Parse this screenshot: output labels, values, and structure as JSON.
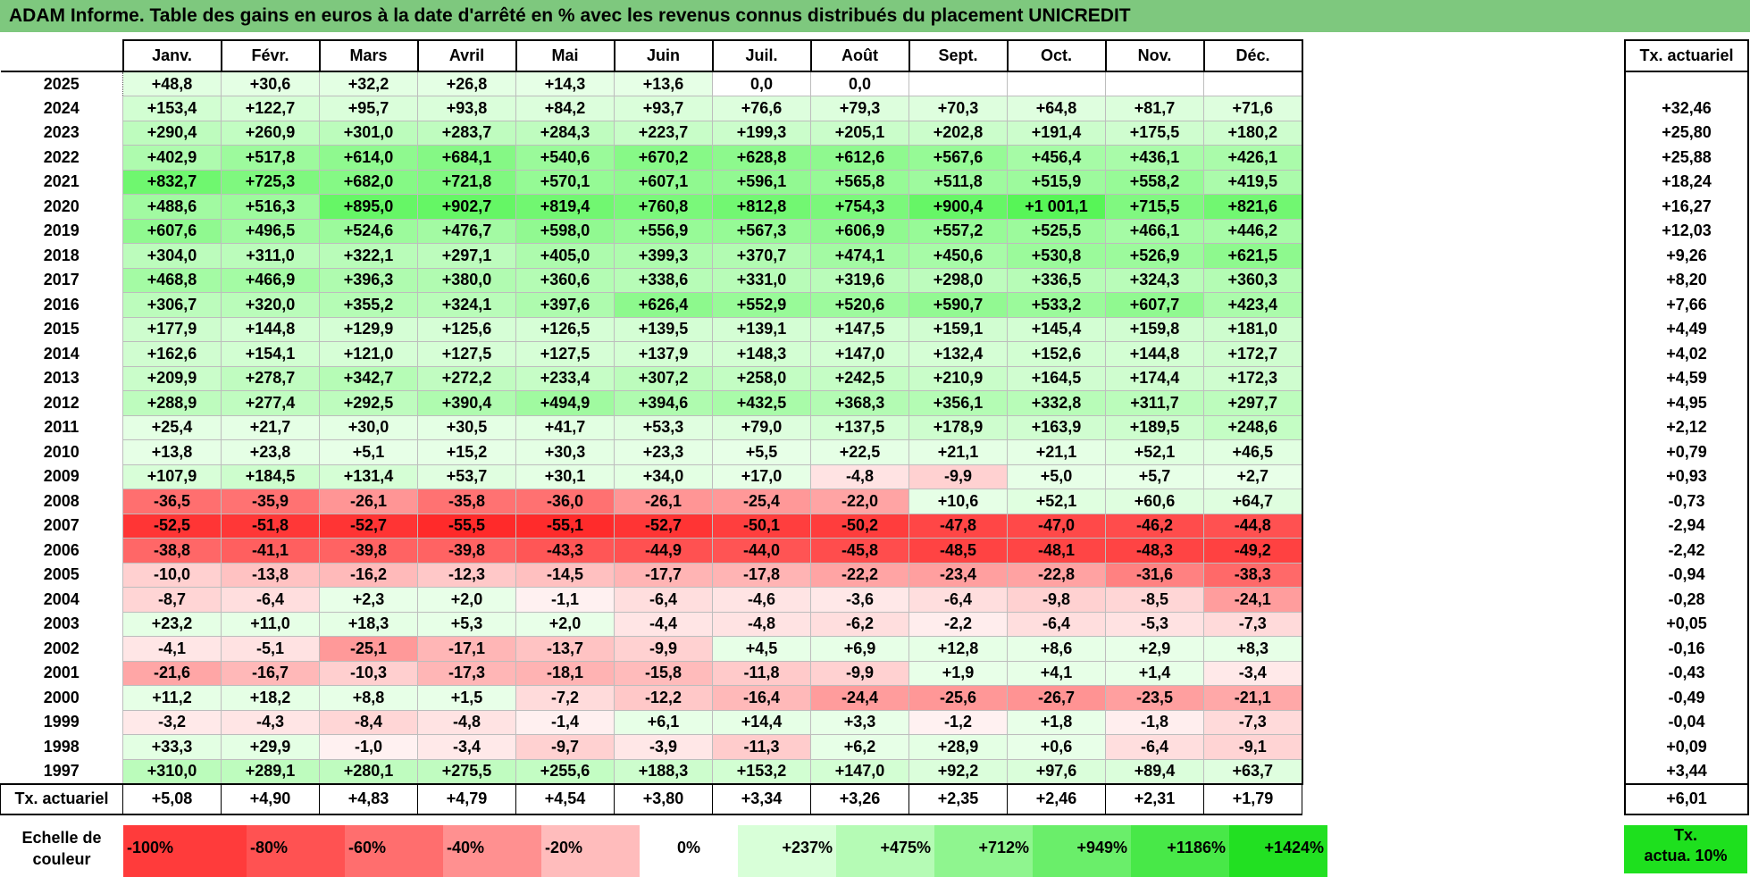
{
  "title": "ADAM Informe. Table des gains en euros à la date d'arrêté en % avec les revenus connus distribués du placement UNICREDIT",
  "months": [
    "Janv.",
    "Févr.",
    "Mars",
    "Avril",
    "Mai",
    "Juin",
    "Juil.",
    "Août",
    "Sept.",
    "Oct.",
    "Nov.",
    "Déc."
  ],
  "tx_header": "Tx. actuariel",
  "rows": [
    {
      "year": "2025",
      "values": [
        "+48,8",
        "+30,6",
        "+32,2",
        "+26,8",
        "+14,3",
        "+13,6",
        "0,0",
        "0,0",
        "",
        "",
        "",
        ""
      ],
      "tx": ""
    },
    {
      "year": "2024",
      "values": [
        "+153,4",
        "+122,7",
        "+95,7",
        "+93,8",
        "+84,2",
        "+93,7",
        "+76,6",
        "+79,3",
        "+70,3",
        "+64,8",
        "+81,7",
        "+71,6"
      ],
      "tx": "+32,46"
    },
    {
      "year": "2023",
      "values": [
        "+290,4",
        "+260,9",
        "+301,0",
        "+283,7",
        "+284,3",
        "+223,7",
        "+199,3",
        "+205,1",
        "+202,8",
        "+191,4",
        "+175,5",
        "+180,2"
      ],
      "tx": "+25,80"
    },
    {
      "year": "2022",
      "values": [
        "+402,9",
        "+517,8",
        "+614,0",
        "+684,1",
        "+540,6",
        "+670,2",
        "+628,8",
        "+612,6",
        "+567,6",
        "+456,4",
        "+436,1",
        "+426,1"
      ],
      "tx": "+25,88"
    },
    {
      "year": "2021",
      "values": [
        "+832,7",
        "+725,3",
        "+682,0",
        "+721,8",
        "+570,1",
        "+607,1",
        "+596,1",
        "+565,8",
        "+511,8",
        "+515,9",
        "+558,2",
        "+419,5"
      ],
      "tx": "+18,24"
    },
    {
      "year": "2020",
      "values": [
        "+488,6",
        "+516,3",
        "+895,0",
        "+902,7",
        "+819,4",
        "+760,8",
        "+812,8",
        "+754,3",
        "+900,4",
        "+1 001,1",
        "+715,5",
        "+821,6"
      ],
      "tx": "+16,27"
    },
    {
      "year": "2019",
      "values": [
        "+607,6",
        "+496,5",
        "+524,6",
        "+476,7",
        "+598,0",
        "+556,9",
        "+567,3",
        "+606,9",
        "+557,2",
        "+525,5",
        "+466,1",
        "+446,2"
      ],
      "tx": "+12,03"
    },
    {
      "year": "2018",
      "values": [
        "+304,0",
        "+311,0",
        "+322,1",
        "+297,1",
        "+405,0",
        "+399,3",
        "+370,7",
        "+474,1",
        "+450,6",
        "+530,8",
        "+526,9",
        "+621,5"
      ],
      "tx": "+9,26"
    },
    {
      "year": "2017",
      "values": [
        "+468,8",
        "+466,9",
        "+396,3",
        "+380,0",
        "+360,6",
        "+338,6",
        "+331,0",
        "+319,6",
        "+298,0",
        "+336,5",
        "+324,3",
        "+360,3"
      ],
      "tx": "+8,20"
    },
    {
      "year": "2016",
      "values": [
        "+306,7",
        "+320,0",
        "+355,2",
        "+324,1",
        "+397,6",
        "+626,4",
        "+552,9",
        "+520,6",
        "+590,7",
        "+533,2",
        "+607,7",
        "+423,4"
      ],
      "tx": "+7,66"
    },
    {
      "year": "2015",
      "values": [
        "+177,9",
        "+144,8",
        "+129,9",
        "+125,6",
        "+126,5",
        "+139,5",
        "+139,1",
        "+147,5",
        "+159,1",
        "+145,4",
        "+159,8",
        "+181,0"
      ],
      "tx": "+4,49"
    },
    {
      "year": "2014",
      "values": [
        "+162,6",
        "+154,1",
        "+121,0",
        "+127,5",
        "+127,5",
        "+137,9",
        "+148,3",
        "+147,0",
        "+132,4",
        "+152,6",
        "+144,8",
        "+172,7"
      ],
      "tx": "+4,02"
    },
    {
      "year": "2013",
      "values": [
        "+209,9",
        "+278,7",
        "+342,7",
        "+272,2",
        "+233,4",
        "+307,2",
        "+258,0",
        "+242,5",
        "+210,9",
        "+164,5",
        "+174,4",
        "+172,3"
      ],
      "tx": "+4,59"
    },
    {
      "year": "2012",
      "values": [
        "+288,9",
        "+277,4",
        "+292,5",
        "+390,4",
        "+494,9",
        "+394,6",
        "+432,5",
        "+368,3",
        "+356,1",
        "+332,8",
        "+311,7",
        "+297,7"
      ],
      "tx": "+4,95"
    },
    {
      "year": "2011",
      "values": [
        "+25,4",
        "+21,7",
        "+30,0",
        "+30,5",
        "+41,7",
        "+53,3",
        "+79,0",
        "+137,5",
        "+178,9",
        "+163,9",
        "+189,5",
        "+248,6"
      ],
      "tx": "+2,12"
    },
    {
      "year": "2010",
      "values": [
        "+13,8",
        "+23,8",
        "+5,1",
        "+15,2",
        "+30,3",
        "+23,3",
        "+5,5",
        "+22,5",
        "+21,1",
        "+21,1",
        "+52,1",
        "+46,5"
      ],
      "tx": "+0,79"
    },
    {
      "year": "2009",
      "values": [
        "+107,9",
        "+184,5",
        "+131,4",
        "+53,7",
        "+30,1",
        "+34,0",
        "+17,0",
        "-4,8",
        "-9,9",
        "+5,0",
        "+5,7",
        "+2,7"
      ],
      "tx": "+0,93"
    },
    {
      "year": "2008",
      "values": [
        "-36,5",
        "-35,9",
        "-26,1",
        "-35,8",
        "-36,0",
        "-26,1",
        "-25,4",
        "-22,0",
        "+10,6",
        "+52,1",
        "+60,6",
        "+64,7"
      ],
      "tx": "-0,73"
    },
    {
      "year": "2007",
      "values": [
        "-52,5",
        "-51,8",
        "-52,7",
        "-55,5",
        "-55,1",
        "-52,7",
        "-50,1",
        "-50,2",
        "-47,8",
        "-47,0",
        "-46,2",
        "-44,8"
      ],
      "tx": "-2,94"
    },
    {
      "year": "2006",
      "values": [
        "-38,8",
        "-41,1",
        "-39,8",
        "-39,8",
        "-43,3",
        "-44,9",
        "-44,0",
        "-45,8",
        "-48,5",
        "-48,1",
        "-48,3",
        "-49,2"
      ],
      "tx": "-2,42"
    },
    {
      "year": "2005",
      "values": [
        "-10,0",
        "-13,8",
        "-16,2",
        "-12,3",
        "-14,5",
        "-17,7",
        "-17,8",
        "-22,2",
        "-23,4",
        "-22,8",
        "-31,6",
        "-38,3"
      ],
      "tx": "-0,94"
    },
    {
      "year": "2004",
      "values": [
        "-8,7",
        "-6,4",
        "+2,3",
        "+2,0",
        "-1,1",
        "-6,4",
        "-4,6",
        "-3,6",
        "-6,4",
        "-9,8",
        "-8,5",
        "-24,1"
      ],
      "tx": "-0,28"
    },
    {
      "year": "2003",
      "values": [
        "+23,2",
        "+11,0",
        "+18,3",
        "+5,3",
        "+2,0",
        "-4,4",
        "-4,8",
        "-6,2",
        "-2,2",
        "-6,4",
        "-5,3",
        "-7,3"
      ],
      "tx": "+0,05"
    },
    {
      "year": "2002",
      "values": [
        "-4,1",
        "-5,1",
        "-25,1",
        "-17,1",
        "-13,7",
        "-9,9",
        "+4,5",
        "+6,9",
        "+12,8",
        "+8,6",
        "+2,9",
        "+8,3"
      ],
      "tx": "-0,16"
    },
    {
      "year": "2001",
      "values": [
        "-21,6",
        "-16,7",
        "-10,3",
        "-17,3",
        "-18,1",
        "-15,8",
        "-11,8",
        "-9,9",
        "+1,9",
        "+4,1",
        "+1,4",
        "-3,4"
      ],
      "tx": "-0,43"
    },
    {
      "year": "2000",
      "values": [
        "+11,2",
        "+18,2",
        "+8,8",
        "+1,5",
        "-7,2",
        "-12,2",
        "-16,4",
        "-24,4",
        "-25,6",
        "-26,7",
        "-23,5",
        "-21,1"
      ],
      "tx": "-0,49"
    },
    {
      "year": "1999",
      "values": [
        "-3,2",
        "-4,3",
        "-8,4",
        "-4,8",
        "-1,4",
        "+6,1",
        "+14,4",
        "+3,3",
        "-1,2",
        "+1,8",
        "-1,8",
        "-7,3"
      ],
      "tx": "-0,04"
    },
    {
      "year": "1998",
      "values": [
        "+33,3",
        "+29,9",
        "-1,0",
        "-3,4",
        "-9,7",
        "-3,9",
        "-11,3",
        "+6,2",
        "+28,9",
        "+0,6",
        "-6,4",
        "-9,1"
      ],
      "tx": "+0,09"
    },
    {
      "year": "1997",
      "values": [
        "+310,0",
        "+289,1",
        "+280,1",
        "+275,5",
        "+255,6",
        "+188,3",
        "+153,2",
        "+147,0",
        "+92,2",
        "+97,6",
        "+89,4",
        "+63,7"
      ],
      "tx": "+3,44"
    }
  ],
  "total": {
    "label": "Tx. actuariel",
    "values": [
      "+5,08",
      "+4,90",
      "+4,83",
      "+4,79",
      "+4,54",
      "+3,80",
      "+3,34",
      "+3,26",
      "+2,35",
      "+2,46",
      "+2,31",
      "+1,79"
    ],
    "tx": "+6,01"
  },
  "legend": {
    "label": "Echelle de couleur",
    "swatches": [
      {
        "label": "-100%",
        "color": "#ff3b3b"
      },
      {
        "label": "-80%",
        "color": "#ff5252"
      },
      {
        "label": "-60%",
        "color": "#ff6e6e"
      },
      {
        "label": "-40%",
        "color": "#ff9090"
      },
      {
        "label": "-20%",
        "color": "#ffbcbc"
      },
      {
        "label": "0%",
        "color": "#ffffff"
      },
      {
        "label": "+237%",
        "color": "#d8ffd8"
      },
      {
        "label": "+475%",
        "color": "#b5fbb5"
      },
      {
        "label": "+712%",
        "color": "#8ff58f"
      },
      {
        "label": "+949%",
        "color": "#6aee6a"
      },
      {
        "label": "+1186%",
        "color": "#48e848"
      },
      {
        "label": "+1424%",
        "color": "#22e022"
      }
    ],
    "tx_label_line1": "Tx.",
    "tx_label_line2": "actua. 10%"
  }
}
